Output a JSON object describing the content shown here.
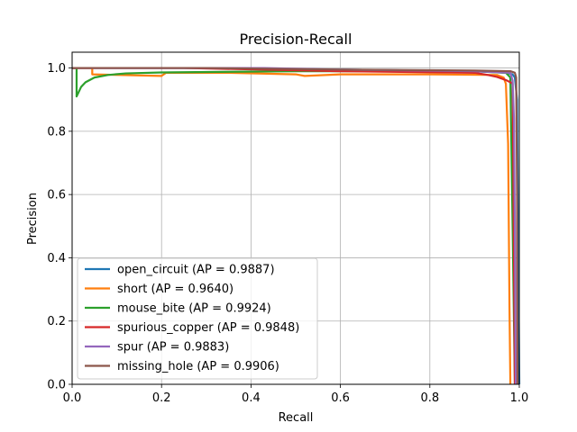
{
  "chart_data": {
    "type": "line",
    "title": "Precision-Recall",
    "xlabel": "Recall",
    "ylabel": "Precision",
    "xlim": [
      0,
      1
    ],
    "ylim": [
      0,
      1.05
    ],
    "xticks": [
      "0.0",
      "0.2",
      "0.4",
      "0.6",
      "0.8",
      "1.0"
    ],
    "yticks": [
      "0.0",
      "0.2",
      "0.4",
      "0.6",
      "0.8",
      "1.0"
    ],
    "grid": true,
    "legend_position": "lower left",
    "series": [
      {
        "name": "open_circuit (AP = 0.9887)",
        "color": "#1f77b4",
        "points": [
          [
            0.0,
            1.0
          ],
          [
            0.3,
            1.0
          ],
          [
            0.6,
            0.995
          ],
          [
            0.9,
            0.99
          ],
          [
            0.97,
            0.985
          ],
          [
            0.985,
            0.98
          ],
          [
            0.99,
            0.97
          ],
          [
            0.995,
            0.9
          ],
          [
            0.997,
            0.5
          ],
          [
            1.0,
            0.0
          ]
        ]
      },
      {
        "name": "short (AP = 0.9640)",
        "color": "#ff7f0e",
        "points": [
          [
            0.0,
            1.0
          ],
          [
            0.045,
            1.0
          ],
          [
            0.045,
            0.98
          ],
          [
            0.2,
            0.975
          ],
          [
            0.21,
            0.985
          ],
          [
            0.35,
            0.985
          ],
          [
            0.5,
            0.98
          ],
          [
            0.52,
            0.975
          ],
          [
            0.6,
            0.98
          ],
          [
            0.8,
            0.98
          ],
          [
            0.95,
            0.978
          ],
          [
            0.965,
            0.97
          ],
          [
            0.97,
            0.95
          ],
          [
            0.975,
            0.76
          ],
          [
            0.978,
            0.25
          ],
          [
            0.98,
            0.0
          ]
        ]
      },
      {
        "name": "mouse_bite (AP = 0.9924)",
        "color": "#2ca02c",
        "points": [
          [
            0.0,
            1.0
          ],
          [
            0.01,
            1.0
          ],
          [
            0.01,
            0.91
          ],
          [
            0.02,
            0.94
          ],
          [
            0.03,
            0.955
          ],
          [
            0.05,
            0.97
          ],
          [
            0.08,
            0.978
          ],
          [
            0.12,
            0.983
          ],
          [
            0.2,
            0.986
          ],
          [
            0.5,
            0.99
          ],
          [
            0.9,
            0.99
          ],
          [
            0.97,
            0.985
          ],
          [
            0.98,
            0.97
          ],
          [
            0.985,
            0.5
          ],
          [
            0.99,
            0.0
          ]
        ]
      },
      {
        "name": "spurious_copper (AP = 0.9848)",
        "color": "#d62728",
        "points": [
          [
            0.0,
            1.0
          ],
          [
            0.25,
            1.0
          ],
          [
            0.6,
            0.99
          ],
          [
            0.9,
            0.985
          ],
          [
            0.93,
            0.978
          ],
          [
            0.95,
            0.972
          ],
          [
            0.97,
            0.962
          ],
          [
            0.98,
            0.955
          ],
          [
            0.985,
            0.95
          ],
          [
            0.987,
            0.6
          ],
          [
            0.99,
            0.0
          ]
        ]
      },
      {
        "name": "spur (AP = 0.9883)",
        "color": "#9467bd",
        "points": [
          [
            0.0,
            1.0
          ],
          [
            0.43,
            1.0
          ],
          [
            0.6,
            0.995
          ],
          [
            0.9,
            0.99
          ],
          [
            0.98,
            0.985
          ],
          [
            0.985,
            0.96
          ],
          [
            0.988,
            0.84
          ],
          [
            0.99,
            0.5
          ],
          [
            0.992,
            0.0
          ]
        ]
      },
      {
        "name": "missing_hole (AP = 0.9906)",
        "color": "#8c564b",
        "points": [
          [
            0.0,
            1.0
          ],
          [
            0.3,
            1.0
          ],
          [
            0.6,
            0.995
          ],
          [
            0.9,
            0.992
          ],
          [
            0.98,
            0.99
          ],
          [
            0.99,
            0.985
          ],
          [
            0.993,
            0.97
          ],
          [
            0.995,
            0.6
          ],
          [
            0.996,
            0.0
          ]
        ]
      }
    ]
  }
}
